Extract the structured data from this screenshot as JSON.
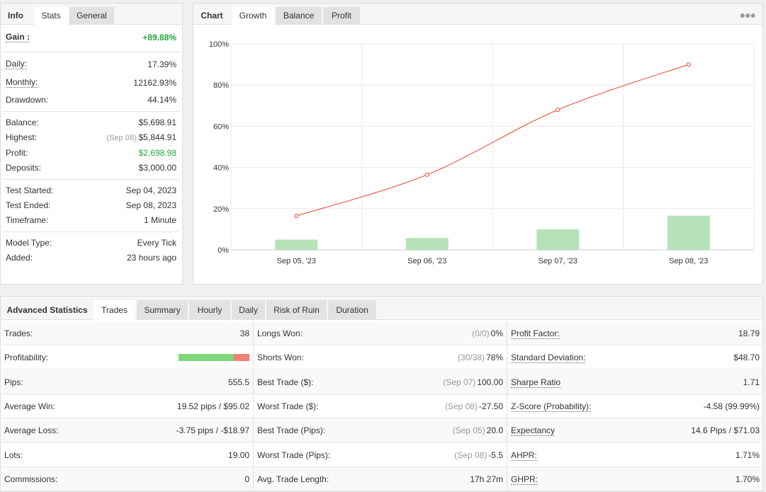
{
  "info_panel": {
    "tabs": [
      "Info",
      "Stats",
      "General"
    ],
    "gain_label": "Gain :",
    "gain_value": "+89.88%",
    "rows": {
      "daily": {
        "label": "Daily:",
        "value": "17.39%"
      },
      "monthly": {
        "label": "Monthly:",
        "value": "12162.93%"
      },
      "drawdown": {
        "label": "Drawdown:",
        "value": "44.14%"
      },
      "balance": {
        "label": "Balance:",
        "value": "$5,698.91"
      },
      "highest": {
        "label": "Highest:",
        "sub": "(Sep 08)",
        "value": "$5,844.91"
      },
      "profit": {
        "label": "Profit:",
        "value": "$2,698.98"
      },
      "deposits": {
        "label": "Deposits:",
        "value": "$3,000.00"
      },
      "test_started": {
        "label": "Test Started:",
        "value": "Sep 04, 2023"
      },
      "test_ended": {
        "label": "Test Ended:",
        "value": "Sep 08, 2023"
      },
      "timeframe": {
        "label": "Timeframe:",
        "value": "1 Minute"
      },
      "model_type": {
        "label": "Model Type:",
        "value": "Every Tick"
      },
      "added": {
        "label": "Added:",
        "value": "23 hours ago"
      }
    }
  },
  "chart_panel": {
    "tabs": [
      "Chart",
      "Growth",
      "Balance",
      "Profit"
    ],
    "more_icon": "ellipsis-icon"
  },
  "chart_data": {
    "type": "line",
    "categories": [
      "Sep 05, '23",
      "Sep 06, '23",
      "Sep 07, '23",
      "Sep 08, '23"
    ],
    "series": [
      {
        "name": "",
        "type": "line",
        "values": [
          16.5,
          36.5,
          68,
          90
        ]
      },
      {
        "name": "",
        "type": "bar",
        "values": [
          5,
          5.8,
          10,
          16.6
        ]
      }
    ],
    "yticks": [
      "0%",
      "20%",
      "40%",
      "60%",
      "80%",
      "100%"
    ],
    "ylim": [
      0,
      100
    ],
    "grid": true,
    "colors": {
      "line": "#e8442e",
      "bar": "#b6e2b8"
    }
  },
  "advanced": {
    "tabs": [
      "Advanced Statistics",
      "Trades",
      "Summary",
      "Hourly",
      "Daily",
      "Risk of Ruin",
      "Duration"
    ],
    "rows": [
      [
        {
          "label": "Trades:",
          "value": "38"
        },
        {
          "label": "Longs Won:",
          "sub": "(0/0)",
          "value": "0%"
        },
        {
          "label": "Profit Factor:",
          "value": "18.79",
          "dotted": true
        }
      ],
      [
        {
          "label": "Profitability:",
          "value": "",
          "bar": {
            "win": 0.78,
            "win_color": "#7ed87a",
            "loss_color": "#f2807a"
          }
        },
        {
          "label": "Shorts Won:",
          "sub": "(30/38)",
          "value": "78%"
        },
        {
          "label": "Standard Deviation:",
          "value": "$48.70",
          "dotted": true
        }
      ],
      [
        {
          "label": "Pips:",
          "value": "555.5"
        },
        {
          "label": "Best Trade ($):",
          "sub": "(Sep 07)",
          "value": "100.00"
        },
        {
          "label": "Sharpe Ratio",
          "value": "1.71",
          "dotted": true
        }
      ],
      [
        {
          "label": "Average Win:",
          "value": "19.52 pips / $95.02"
        },
        {
          "label": "Worst Trade ($):",
          "sub": "(Sep 08)",
          "value": "-27.50"
        },
        {
          "label": "Z-Score (Probability):",
          "value": "-4.58 (99.99%)",
          "dotted": true
        }
      ],
      [
        {
          "label": "Average Loss:",
          "value": "-3.75 pips / -$18.97"
        },
        {
          "label": "Best Trade (Pips):",
          "sub": "(Sep 05)",
          "value": "20.0"
        },
        {
          "label": "Expectancy",
          "value": "14.6 Pips / $71.03",
          "dotted": true
        }
      ],
      [
        {
          "label": "Lots:",
          "value": "19.00"
        },
        {
          "label": "Worst Trade (Pips):",
          "sub": "(Sep 08)",
          "value": "-5.5"
        },
        {
          "label": "AHPR:",
          "value": "1.71%",
          "dotted": true
        }
      ],
      [
        {
          "label": "Commissions:",
          "value": "0"
        },
        {
          "label": "Avg. Trade Length:",
          "value": "17h 27m"
        },
        {
          "label": "GHPR:",
          "value": "1.70%",
          "dotted": true
        }
      ]
    ]
  }
}
